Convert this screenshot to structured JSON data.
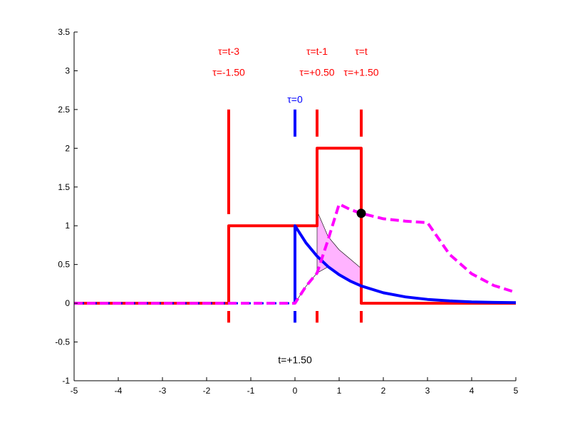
{
  "chart_data": {
    "type": "line",
    "title": "",
    "xlabel": "",
    "ylabel": "",
    "xlim": [
      -5,
      5
    ],
    "ylim": [
      -1,
      3.5
    ],
    "grid": false,
    "legend": "none",
    "xticks": [
      {
        "value": -5,
        "label": "-5"
      },
      {
        "value": -4,
        "label": "-4"
      },
      {
        "value": -3,
        "label": "-3"
      },
      {
        "value": -2,
        "label": "-2"
      },
      {
        "value": -1,
        "label": "-1"
      },
      {
        "value": 0,
        "label": "0"
      },
      {
        "value": 1,
        "label": "1"
      },
      {
        "value": 2,
        "label": "2"
      },
      {
        "value": 3,
        "label": "3"
      },
      {
        "value": 4,
        "label": "4"
      },
      {
        "value": 5,
        "label": "5"
      }
    ],
    "yticks": [
      {
        "value": -1,
        "label": "-1"
      },
      {
        "value": -0.5,
        "label": "-0.5"
      },
      {
        "value": 0,
        "label": "0"
      },
      {
        "value": 0.5,
        "label": "0.5"
      },
      {
        "value": 1,
        "label": "1"
      },
      {
        "value": 1.5,
        "label": "1.5"
      },
      {
        "value": 2,
        "label": "2"
      },
      {
        "value": 2.5,
        "label": "2.5"
      },
      {
        "value": 3,
        "label": "3"
      },
      {
        "value": 3.5,
        "label": "3.5"
      }
    ],
    "t": 1.5,
    "colors": {
      "f_line": "#ff0000",
      "g_line": "#0000ff",
      "conv_line": "#ff00ff",
      "fill": "#ffb3ff",
      "point": "#000000"
    },
    "series": [
      {
        "name": "f(tau) shifted input",
        "style": "solid",
        "color": "#ff0000",
        "x": [
          -5,
          -1.5,
          -1.5,
          0.5,
          0.5,
          1.5,
          1.5,
          5
        ],
        "y": [
          0,
          0,
          1,
          1,
          2,
          2,
          0,
          0
        ]
      },
      {
        "name": "g(tau) impulse response",
        "style": "solid",
        "color": "#0000ff",
        "x": [
          0,
          0,
          0.25,
          0.5,
          0.75,
          1.0,
          1.25,
          1.5,
          2.0,
          2.5,
          3.0,
          3.5,
          4.0,
          4.5,
          5.0
        ],
        "y": [
          0,
          1,
          0.779,
          0.607,
          0.472,
          0.368,
          0.287,
          0.223,
          0.135,
          0.082,
          0.05,
          0.03,
          0.018,
          0.011,
          0.007
        ]
      },
      {
        "name": "g(tau) zero part",
        "style": "dotted",
        "color": "#0000ff",
        "x": [
          -5,
          0
        ],
        "y": [
          0,
          0
        ]
      },
      {
        "name": "convolution result (f*g)(t)",
        "style": "dashed",
        "color": "#ff00ff",
        "x": [
          -5,
          0,
          0.25,
          0.5,
          0.75,
          1.0,
          1.25,
          1.5,
          2.0,
          2.5,
          3.0,
          3.5,
          4.0,
          4.5,
          5.0
        ],
        "y": [
          0,
          0,
          0.22,
          0.39,
          0.82,
          1.28,
          1.21,
          1.16,
          1.09,
          1.06,
          1.04,
          0.63,
          0.38,
          0.23,
          0.14
        ]
      }
    ],
    "product_area": {
      "x": [
        0,
        0.25,
        0.5,
        0.5,
        0.75,
        1.0,
        1.25,
        1.5
      ],
      "upper_y": [
        0,
        0.22,
        0.39,
        1.19,
        0.86,
        0.69,
        0.57,
        0.45
      ],
      "lower_y": [
        0,
        0.22,
        0.39,
        0.39,
        0.47,
        0.37,
        0.29,
        0.22
      ]
    },
    "vertical_markers": [
      {
        "x": -1.5,
        "color": "#ff0000",
        "y_segments": [
          [
            1.15,
            2.5
          ],
          [
            -0.25,
            -0.1
          ]
        ]
      },
      {
        "x": 0,
        "color": "#0000ff",
        "y_segments": [
          [
            2.15,
            2.5
          ],
          [
            -0.25,
            -0.1
          ]
        ]
      },
      {
        "x": 0.5,
        "color": "#ff0000",
        "y_segments": [
          [
            2.15,
            2.5
          ],
          [
            -0.25,
            -0.1
          ]
        ]
      },
      {
        "x": 1.5,
        "color": "#ff0000",
        "y_segments": [
          [
            2.15,
            2.5
          ],
          [
            -0.25,
            -0.1
          ]
        ]
      }
    ],
    "current_point": {
      "x": 1.5,
      "y": 1.16
    },
    "annotations": [
      {
        "id": "ann-tau-t-3",
        "text": "τ=t-3",
        "x": -1.5,
        "y": 3.25,
        "color": "#ff0000"
      },
      {
        "id": "ann-tau-m150",
        "text": "τ=-1.50",
        "x": -1.5,
        "y": 2.98,
        "color": "#ff0000"
      },
      {
        "id": "ann-tau-t-1",
        "text": "τ=t-1",
        "x": 0.5,
        "y": 3.25,
        "color": "#ff0000"
      },
      {
        "id": "ann-tau-p050",
        "text": "τ=+0.50",
        "x": 0.5,
        "y": 2.98,
        "color": "#ff0000"
      },
      {
        "id": "ann-tau-t",
        "text": "τ=t",
        "x": 1.5,
        "y": 3.25,
        "color": "#ff0000"
      },
      {
        "id": "ann-tau-p150",
        "text": "τ=+1.50",
        "x": 1.5,
        "y": 2.98,
        "color": "#ff0000"
      },
      {
        "id": "ann-tau-0",
        "text": "τ=0",
        "x": 0,
        "y": 2.63,
        "color": "#0000ff"
      },
      {
        "id": "ann-time",
        "text": "t=+1.50",
        "x": 0,
        "y": -0.73,
        "color": "#000000"
      }
    ]
  }
}
